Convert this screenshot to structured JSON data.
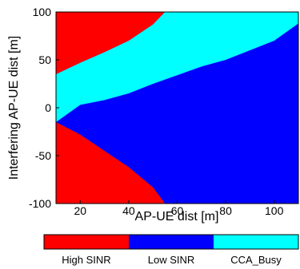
{
  "chart_data": {
    "type": "heatmap",
    "xlabel": "AP-UE dist [m]",
    "ylabel": "Interfering AP-UE dist [m]",
    "xlim": [
      10,
      110
    ],
    "ylim": [
      -100,
      100
    ],
    "x_ticks": [
      "20",
      "40",
      "60",
      "80",
      "100"
    ],
    "x_tick_values": [
      20,
      40,
      60,
      80,
      100
    ],
    "y_ticks": [
      "100",
      "50",
      "0",
      "-50",
      "-100"
    ],
    "y_tick_values": [
      100,
      50,
      0,
      -50,
      -100
    ],
    "grid": false,
    "categories": [
      {
        "label": "High SINR",
        "color": "#ff0000"
      },
      {
        "label": "Low SINR",
        "color": "#0000ff"
      },
      {
        "label": "CCA_Busy",
        "color": "#00ffff"
      }
    ],
    "regions": [
      {
        "category": "High SINR",
        "polygon": [
          [
            10,
            100
          ],
          [
            10,
            35
          ],
          [
            20,
            47
          ],
          [
            30,
            58
          ],
          [
            40,
            70
          ],
          [
            50,
            87
          ],
          [
            55,
            100
          ]
        ]
      },
      {
        "category": "CCA_Busy",
        "polygon": [
          [
            10,
            35
          ],
          [
            20,
            47
          ],
          [
            30,
            58
          ],
          [
            40,
            70
          ],
          [
            50,
            87
          ],
          [
            55,
            100
          ],
          [
            110,
            100
          ],
          [
            110,
            88
          ],
          [
            100,
            70
          ],
          [
            90,
            60
          ],
          [
            80,
            50
          ],
          [
            70,
            43
          ],
          [
            60,
            34
          ],
          [
            50,
            25
          ],
          [
            40,
            15
          ],
          [
            30,
            8
          ],
          [
            20,
            3
          ],
          [
            10,
            -15
          ]
        ]
      },
      {
        "category": "High SINR",
        "polygon": [
          [
            10,
            -100
          ],
          [
            10,
            -15
          ],
          [
            20,
            -28
          ],
          [
            30,
            -45
          ],
          [
            40,
            -62
          ],
          [
            50,
            -83
          ],
          [
            55,
            -100
          ]
        ]
      }
    ],
    "background_category": "Low SINR"
  }
}
